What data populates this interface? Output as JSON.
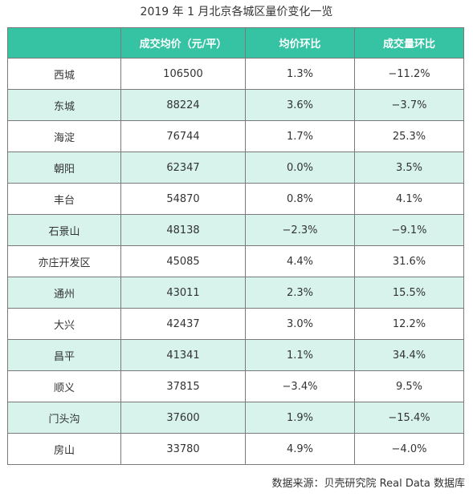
{
  "title": "2019 年 1 月北京各城区量价变化一览",
  "table": {
    "headers": [
      "",
      "成交均价（元/平）",
      "均价环比",
      "成交量环比"
    ],
    "rows": [
      {
        "district": "西城",
        "price": "106500",
        "price_mom": "1.3%",
        "volume_mom": "−11.2%"
      },
      {
        "district": "东城",
        "price": "88224",
        "price_mom": "3.6%",
        "volume_mom": "−3.7%"
      },
      {
        "district": "海淀",
        "price": "76744",
        "price_mom": "1.7%",
        "volume_mom": "25.3%"
      },
      {
        "district": "朝阳",
        "price": "62347",
        "price_mom": "0.0%",
        "volume_mom": "3.5%"
      },
      {
        "district": "丰台",
        "price": "54870",
        "price_mom": "0.8%",
        "volume_mom": "4.1%"
      },
      {
        "district": "石景山",
        "price": "48138",
        "price_mom": "−2.3%",
        "volume_mom": "−9.1%"
      },
      {
        "district": "亦庄开发区",
        "price": "45085",
        "price_mom": "4.4%",
        "volume_mom": "31.6%"
      },
      {
        "district": "通州",
        "price": "43011",
        "price_mom": "2.3%",
        "volume_mom": "15.5%"
      },
      {
        "district": "大兴",
        "price": "42437",
        "price_mom": "3.0%",
        "volume_mom": "12.2%"
      },
      {
        "district": "昌平",
        "price": "41341",
        "price_mom": "1.1%",
        "volume_mom": "34.4%"
      },
      {
        "district": "顺义",
        "price": "37815",
        "price_mom": "−3.4%",
        "volume_mom": "9.5%"
      },
      {
        "district": "门头沟",
        "price": "37600",
        "price_mom": "1.9%",
        "volume_mom": "−15.4%"
      },
      {
        "district": "房山",
        "price": "33780",
        "price_mom": "4.9%",
        "volume_mom": "−4.0%"
      }
    ]
  },
  "source": "数据来源：贝壳研究院 Real Data 数据库",
  "colors": {
    "header_bg": "#36c3a3",
    "stripe_bg": "#d7f3ec",
    "border": "#7a7a7a"
  }
}
